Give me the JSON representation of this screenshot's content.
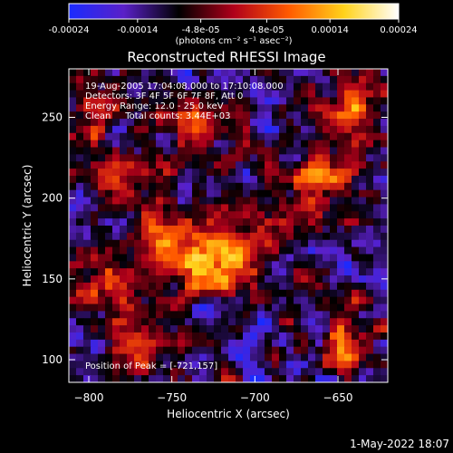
{
  "colorbar": {
    "ticks": [
      "-0.00024",
      "-0.00014",
      "-4.8e-05",
      "4.8e-05",
      "0.00014",
      "0.00024"
    ],
    "tick_values": [
      -0.00024,
      -0.00014,
      -4.8e-05,
      4.8e-05,
      0.00014,
      0.00024
    ],
    "range": [
      -0.00024,
      0.00024
    ],
    "units": "(photons cm⁻² s⁻¹ asec⁻²)",
    "colors": [
      "#1a2bff",
      "#5a20c8",
      "#000000",
      "#b0001a",
      "#ff5a00",
      "#ffd21a",
      "#ffffff"
    ]
  },
  "chart_data": {
    "type": "heatmap",
    "title": "Reconstructed RHESSI Image",
    "xlabel": "Heliocentric X (arcsec)",
    "ylabel": "Heliocentric Y (arcsec)",
    "xlim": [
      -812,
      -620
    ],
    "ylim": [
      86,
      280
    ],
    "xticks": [
      -800,
      -750,
      -700,
      -650
    ],
    "yticks": [
      100,
      150,
      200,
      250
    ],
    "annotations": [
      "19-Aug-2005 17:04:08.000 to 17:10:08.000",
      "Detectors: 3F 4F 5F 6F 7F 8F, Att 0",
      "Energy Range: 12.0 - 25.0 keV",
      "Clean     Total counts: 3.44E+03"
    ],
    "peak_label": "Position of Peak = [-721,157]",
    "peak": [
      -721,
      157
    ],
    "bright_regions": [
      {
        "x": -721,
        "y": 157,
        "level": 1.0
      },
      {
        "x": -752,
        "y": 170,
        "level": 0.75
      },
      {
        "x": -790,
        "y": 150,
        "level": 0.7
      },
      {
        "x": -735,
        "y": 245,
        "level": 0.65
      },
      {
        "x": -775,
        "y": 210,
        "level": 0.6
      },
      {
        "x": -655,
        "y": 210,
        "level": 0.75
      },
      {
        "x": -640,
        "y": 255,
        "level": 0.6
      },
      {
        "x": -645,
        "y": 110,
        "level": 0.6
      },
      {
        "x": -690,
        "y": 185,
        "level": 0.5
      },
      {
        "x": -770,
        "y": 110,
        "level": 0.55
      },
      {
        "x": -800,
        "y": 250,
        "level": 0.5
      }
    ]
  },
  "footer": {
    "date": "1-May-2022 18:07"
  }
}
